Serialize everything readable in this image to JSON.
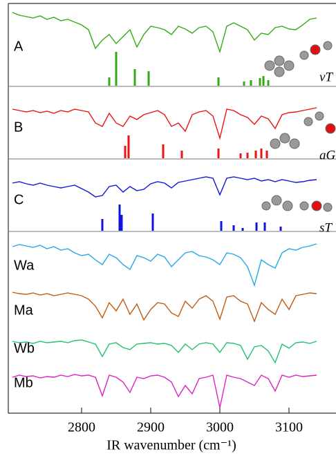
{
  "chart_data": {
    "type": "line",
    "xlabel": "IR wavenumber (cm⁻¹)",
    "xlim": [
      2694,
      3166
    ],
    "xticks": [
      2800,
      2900,
      3000,
      3100
    ],
    "ylim": [
      0,
      593
    ],
    "x": [
      2700,
      2710,
      2720,
      2730,
      2740,
      2750,
      2760,
      2770,
      2780,
      2790,
      2800,
      2810,
      2820,
      2830,
      2840,
      2850,
      2860,
      2870,
      2880,
      2890,
      2900,
      2910,
      2920,
      2930,
      2940,
      2950,
      2960,
      2970,
      2980,
      2990,
      3000,
      3010,
      3020,
      3030,
      3040,
      3050,
      3060,
      3070,
      3080,
      3090,
      3100,
      3110,
      3120,
      3130,
      3140
    ],
    "series": [
      {
        "name": "A",
        "color": "#33aa11",
        "values": [
          580,
          576,
          574,
          572,
          575,
          570,
          573,
          568,
          570,
          566,
          562,
          555,
          528,
          540,
          548,
          535,
          545,
          555,
          530,
          548,
          560,
          558,
          555,
          548,
          560,
          556,
          550,
          558,
          560,
          552,
          523,
          560,
          565,
          560,
          555,
          540,
          550,
          548,
          558,
          560,
          556,
          555,
          562,
          570,
          572
        ],
        "sticks": {
          "x": [
            2840,
            2850,
            2877,
            2897,
            2998,
            3035,
            3045,
            3058,
            3063,
            3070
          ],
          "values": [
            486,
            523,
            498,
            495,
            486,
            480,
            482,
            485,
            488,
            482
          ]
        }
      },
      {
        "name": "B",
        "color": "#ee1111",
        "values": [
          440,
          438,
          436,
          438,
          435,
          437,
          434,
          438,
          436,
          440,
          438,
          436,
          420,
          415,
          434,
          420,
          415,
          430,
          425,
          432,
          435,
          438,
          432,
          415,
          420,
          408,
          432,
          436,
          438,
          430,
          398,
          440,
          438,
          432,
          428,
          418,
          430,
          426,
          412,
          432,
          435,
          436,
          438,
          440,
          442
        ],
        "sticks": {
          "x": [
            2863,
            2868,
            2918,
            2945,
            2998,
            3030,
            3040,
            3052,
            3060,
            3068
          ],
          "values": [
            387,
            402,
            389,
            380,
            383,
            376,
            377,
            380,
            383,
            380
          ]
        }
      },
      {
        "name": "C",
        "color": "#1111dd",
        "values": [
          333,
          335,
          332,
          330,
          333,
          330,
          328,
          326,
          328,
          330,
          325,
          320,
          313,
          315,
          328,
          330,
          320,
          328,
          322,
          324,
          332,
          335,
          333,
          326,
          334,
          336,
          338,
          340,
          342,
          340,
          316,
          340,
          342,
          340,
          338,
          340,
          336,
          338,
          335,
          338,
          336,
          334,
          335,
          337,
          338
        ],
        "sticks": {
          "x": [
            2830,
            2855,
            2858,
            2903,
            3002,
            3020,
            3033,
            3053,
            3065,
            3088
          ],
          "values": [
            281,
            302,
            287,
            289,
            278,
            272,
            268,
            276,
            276,
            270
          ]
        }
      },
      {
        "name": "Wa",
        "color": "#22a8e8",
        "values": [
          241,
          244,
          242,
          240,
          243,
          238,
          241,
          236,
          238,
          232,
          228,
          230,
          222,
          215,
          230,
          225,
          215,
          208,
          228,
          225,
          220,
          230,
          226,
          212,
          222,
          232,
          234,
          228,
          226,
          222,
          215,
          232,
          230,
          225,
          212,
          185,
          222,
          215,
          210,
          232,
          238,
          236,
          240,
          242,
          245
        ]
      },
      {
        "name": "Ma",
        "color": "#c05a10",
        "values": [
          175,
          173,
          172,
          174,
          171,
          173,
          170,
          172,
          174,
          172,
          170,
          165,
          155,
          138,
          160,
          148,
          165,
          143,
          158,
          135,
          150,
          160,
          158,
          145,
          140,
          162,
          152,
          165,
          170,
          162,
          136,
          168,
          170,
          162,
          158,
          133,
          160,
          150,
          143,
          165,
          150,
          170,
          172,
          174,
          173
        ]
      },
      {
        "name": "Wb",
        "color": "#22c070",
        "values": [
          104,
          102,
          103,
          101,
          104,
          102,
          103,
          104,
          102,
          105,
          106,
          103,
          100,
          82,
          100,
          102,
          95,
          92,
          100,
          101,
          102,
          100,
          101,
          98,
          88,
          100,
          92,
          100,
          102,
          100,
          88,
          102,
          101,
          98,
          78,
          96,
          98,
          90,
          73,
          100,
          94,
          102,
          103,
          101,
          104
        ]
      },
      {
        "name": "Mb",
        "color": "#e020c0",
        "values": [
          52,
          55,
          53,
          54,
          51,
          53,
          52,
          55,
          53,
          56,
          54,
          55,
          52,
          25,
          55,
          52,
          45,
          30,
          52,
          50,
          54,
          55,
          52,
          45,
          24,
          40,
          28,
          50,
          52,
          55,
          8,
          55,
          52,
          50,
          45,
          40,
          55,
          50,
          32,
          55,
          52,
          55,
          53,
          54,
          55
        ]
      }
    ],
    "annotations": [
      "vT",
      "aG",
      "sT"
    ]
  }
}
